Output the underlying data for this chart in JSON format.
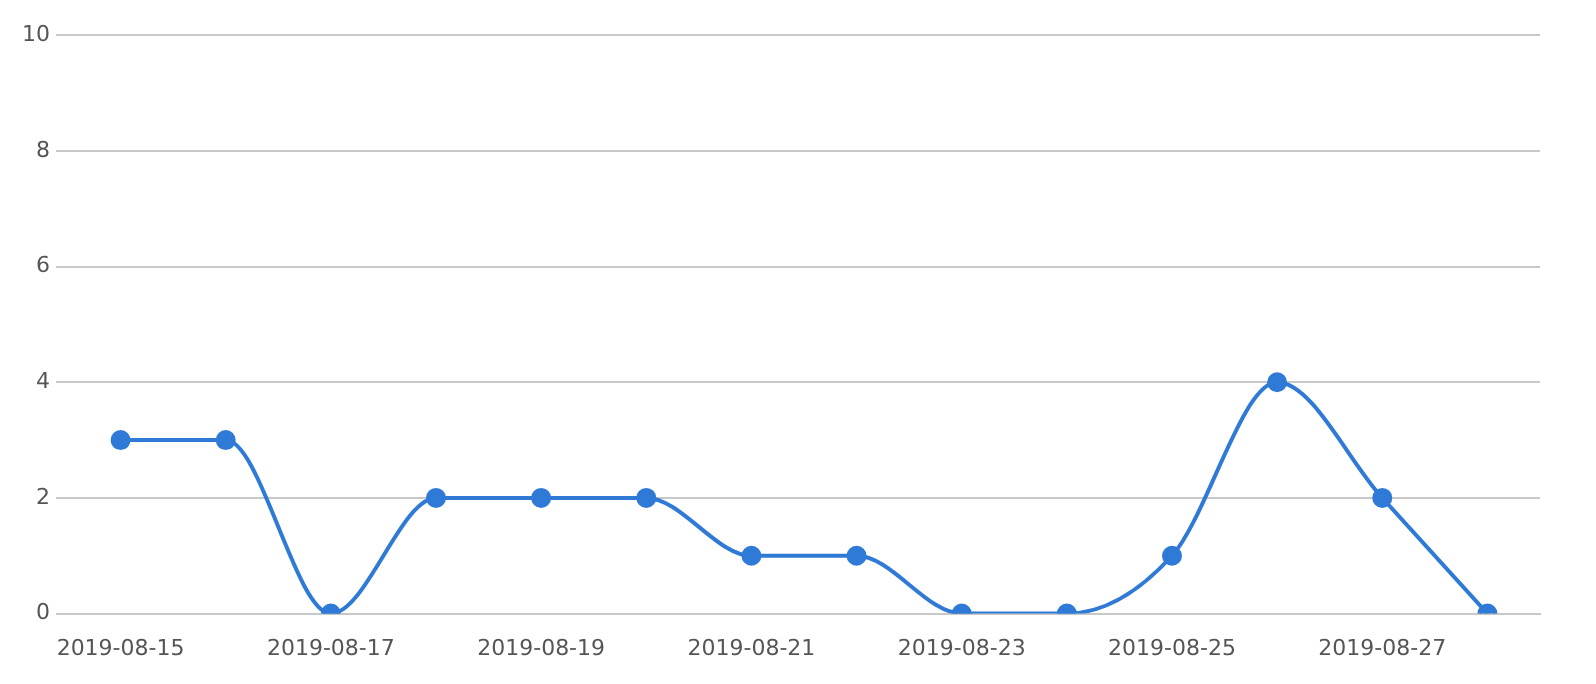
{
  "chart_data": {
    "type": "line",
    "categories": [
      "2019-08-15",
      null,
      "2019-08-17",
      null,
      "2019-08-19",
      null,
      "2019-08-21",
      null,
      "2019-08-23",
      null,
      "2019-08-25",
      null,
      "2019-08-27",
      null
    ],
    "series": [
      {
        "color": "#2f7ad6",
        "values": [
          3,
          3,
          0,
          2,
          2,
          2,
          1,
          1,
          0,
          0,
          1,
          4,
          2,
          0
        ]
      }
    ],
    "ylim": [
      0,
      10
    ],
    "yticks": [
      0,
      2,
      4,
      6,
      8,
      10
    ],
    "grid": "y",
    "legend": false,
    "marker": "circle",
    "line_style": "solid"
  }
}
